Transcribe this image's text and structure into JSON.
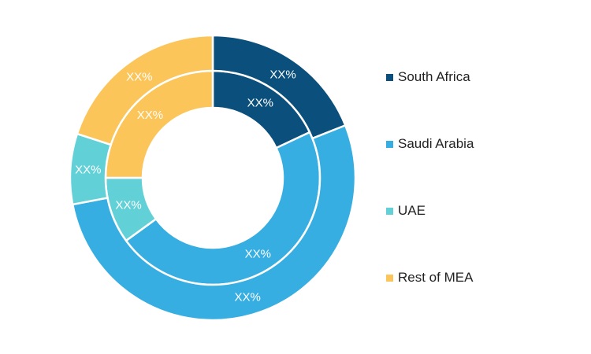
{
  "chart_data": {
    "type": "pie",
    "variant": "double-donut",
    "categories": [
      "South Africa",
      "Saudi Arabia",
      "UAE",
      "Rest of MEA"
    ],
    "series": [
      {
        "values": [
          18,
          47,
          10,
          25
        ],
        "labels": [
          "XX%",
          "XX%",
          "XX%",
          "XX%"
        ]
      },
      {
        "values": [
          19,
          53,
          8,
          20
        ],
        "labels": [
          "XX%",
          "XX%",
          "XX%",
          "XX%"
        ]
      }
    ],
    "colors": [
      "#0b4f7c",
      "#36aee2",
      "#62d1d7",
      "#fbc55a"
    ],
    "legend_position": "right"
  },
  "legend": {
    "items": [
      {
        "label": "South Africa",
        "color": "#0b4f7c"
      },
      {
        "label": "Saudi Arabia",
        "color": "#36aee2"
      },
      {
        "label": "UAE",
        "color": "#62d1d7"
      },
      {
        "label": "Rest of MEA",
        "color": "#fbc55a"
      }
    ]
  }
}
